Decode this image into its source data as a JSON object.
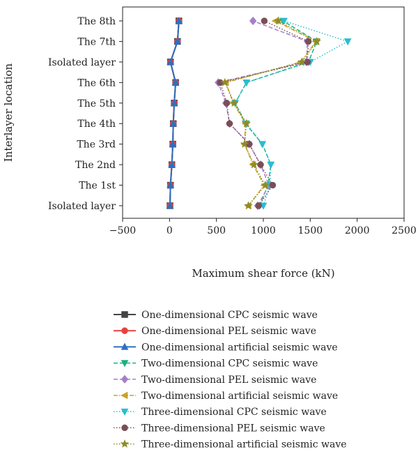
{
  "chart_data": {
    "type": "line",
    "orientation": "horizontal",
    "xlabel": "Maximum shear force (kN)",
    "ylabel": "Interlayer location",
    "xlim": [
      -500,
      2500
    ],
    "x_ticks": [
      -500,
      0,
      500,
      1000,
      1500,
      2000,
      2500
    ],
    "x_tick_labels": [
      "−500",
      "0",
      "500",
      "1000",
      "1500",
      "2000",
      "2500"
    ],
    "categories": [
      "Isolated layer",
      "The 1st",
      "The 2nd",
      "The 3rd",
      "The 4th",
      "The 5th",
      "The 6th",
      "Isolated layer",
      "The 7th",
      "The 8th"
    ],
    "legend_position": "bottom",
    "series": [
      {
        "name": "One-dimensional CPC seismic wave",
        "color": "#444444",
        "marker": "square",
        "dash": "solid",
        "values": [
          5,
          10,
          25,
          35,
          40,
          50,
          65,
          10,
          85,
          100
        ]
      },
      {
        "name": "One-dimensional PEL seismic wave",
        "color": "#e8413c",
        "marker": "circle",
        "dash": "solid",
        "values": [
          5,
          10,
          25,
          35,
          40,
          50,
          65,
          10,
          85,
          100
        ]
      },
      {
        "name": "One-dimensional artificial seismic wave",
        "color": "#2e6fc0",
        "marker": "triangle-up",
        "dash": "solid",
        "values": [
          5,
          10,
          25,
          35,
          40,
          50,
          65,
          10,
          85,
          100
        ]
      },
      {
        "name": "Two-dimensional CPC seismic wave",
        "color": "#1db07f",
        "marker": "triangle-down",
        "dash": "dash",
        "values": [
          960,
          1050,
          1080,
          990,
          810,
          700,
          820,
          1480,
          1570,
          1210
        ]
      },
      {
        "name": "Two-dimensional PEL seismic wave",
        "color": "#a57fc9",
        "marker": "diamond",
        "dash": "dash",
        "values": [
          940,
          1060,
          970,
          850,
          640,
          600,
          520,
          1460,
          1470,
          890
        ]
      },
      {
        "name": "Two-dimensional artificial seismic wave",
        "color": "#c9a227",
        "marker": "triangle-left",
        "dash": "dashdot",
        "values": [
          840,
          1010,
          890,
          800,
          810,
          680,
          600,
          1400,
          1560,
          1130
        ]
      },
      {
        "name": "Three-dimensional CPC seismic wave",
        "color": "#2bbcd4",
        "marker": "triangle-down",
        "dash": "dot",
        "values": [
          1000,
          1070,
          1080,
          990,
          820,
          700,
          820,
          1500,
          1900,
          1220
        ]
      },
      {
        "name": "Three-dimensional PEL seismic wave",
        "color": "#7a4e57",
        "marker": "circle",
        "dash": "dot",
        "values": [
          950,
          1100,
          970,
          850,
          640,
          610,
          540,
          1470,
          1480,
          1010
        ]
      },
      {
        "name": "Three-dimensional artificial seismic wave",
        "color": "#8c8c2a",
        "marker": "star",
        "dash": "dot",
        "values": [
          840,
          1020,
          900,
          800,
          820,
          690,
          590,
          1410,
          1570,
          1160
        ]
      }
    ]
  }
}
